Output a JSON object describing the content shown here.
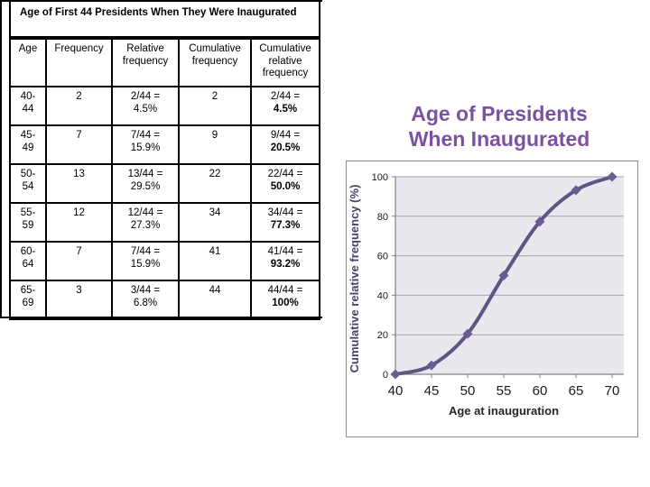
{
  "title_box": {
    "text": "Age of First 44 Presidents When They Were Inaugurated"
  },
  "table": {
    "headers": [
      "Age",
      "Frequency",
      "Relative frequency",
      "Cumulative frequency",
      "Cumulative relative frequency"
    ],
    "rows": [
      {
        "age": "40-\n44",
        "frequency": "2",
        "relative": "2/44 =\n4.5%",
        "cumulative": "2",
        "cum_rel_frac": "2/44 =",
        "cum_rel_pct": "4.5%"
      },
      {
        "age": "45-\n49",
        "frequency": "7",
        "relative": "7/44 =\n15.9%",
        "cumulative": "9",
        "cum_rel_frac": "9/44 =",
        "cum_rel_pct": "20.5%"
      },
      {
        "age": "50-\n54",
        "frequency": "13",
        "relative": "13/44 =\n29.5%",
        "cumulative": "22",
        "cum_rel_frac": "22/44 =",
        "cum_rel_pct": "50.0%"
      },
      {
        "age": "55-\n59",
        "frequency": "12",
        "relative": "12/44 =\n27.3%",
        "cumulative": "34",
        "cum_rel_frac": "34/44 =",
        "cum_rel_pct": "77.3%"
      },
      {
        "age": "60-\n64",
        "frequency": "7",
        "relative": "7/44 =\n15.9%",
        "cumulative": "41",
        "cum_rel_frac": "41/44 =",
        "cum_rel_pct": "93.2%"
      },
      {
        "age": "65-\n69",
        "frequency": "3",
        "relative": "3/44 =\n6.8%",
        "cumulative": "44",
        "cum_rel_frac": "44/44 =",
        "cum_rel_pct": "100%"
      }
    ]
  },
  "chart_heading": {
    "line1": "Age of Presidents",
    "line2": "When Inaugurated"
  },
  "chart_data": {
    "type": "line",
    "x": [
      40,
      45,
      50,
      55,
      60,
      65,
      70
    ],
    "y": [
      0,
      4.5,
      20.5,
      50.0,
      77.3,
      93.2,
      100
    ],
    "title": "Age of Presidents When Inaugurated",
    "xlabel": "Age at inauguration",
    "ylabel": "Cumulative relative frequency (%)",
    "xticks": [
      40,
      45,
      50,
      55,
      60,
      65,
      70
    ],
    "yticks": [
      0,
      20,
      40,
      60,
      80,
      100
    ],
    "xlim": [
      40,
      70
    ],
    "ylim": [
      0,
      100
    ],
    "grid": true,
    "legend": false,
    "marker": "diamond"
  },
  "colors": {
    "heading_purple": "#7B52A2",
    "line": "#5D5683",
    "marker": "#6A5B95",
    "plot_bg": "#EAE8EF",
    "gridline": "#A7A4B0",
    "axis": "#808080",
    "chart_border": "#8C8C8C",
    "y_title": "#4A4166",
    "x_title": "#262626",
    "tick_label": "#1A1A1A"
  }
}
